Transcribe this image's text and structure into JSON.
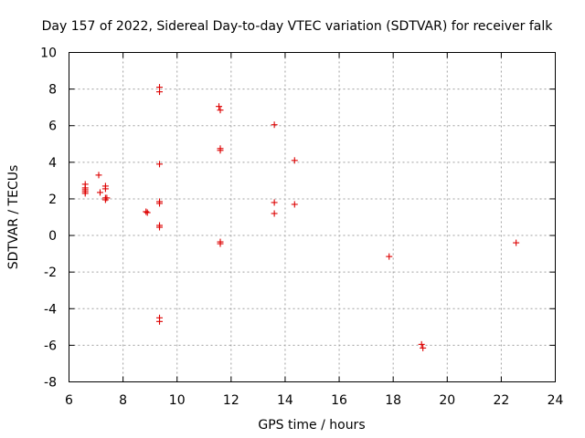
{
  "chart_data": {
    "type": "scatter",
    "title": "Day 157 of 2022, Sidereal Day-to-day VTEC variation (SDTVAR) for receiver falk",
    "xlabel": "GPS time / hours",
    "ylabel": "SDTVAR / TECUs",
    "xlim": [
      6,
      24
    ],
    "ylim": [
      -8,
      10
    ],
    "xticks": [
      6,
      8,
      10,
      12,
      14,
      16,
      18,
      20,
      22,
      24
    ],
    "yticks": [
      -8,
      -6,
      -4,
      -2,
      0,
      2,
      4,
      6,
      8,
      10
    ],
    "grid": true,
    "marker": "+",
    "color": "#dd0000",
    "series": [
      {
        "name": "SDTVAR",
        "x": [
          6.6,
          6.6,
          6.6,
          6.6,
          6.6,
          7.1,
          7.15,
          7.35,
          7.35,
          7.35,
          7.35,
          7.4,
          8.85,
          8.9,
          9.35,
          9.35,
          9.35,
          9.35,
          9.35,
          9.35,
          9.35,
          9.35,
          9.35,
          11.55,
          11.6,
          11.6,
          11.6,
          11.6,
          11.6,
          13.6,
          13.6,
          13.6,
          14.35,
          14.35,
          17.85,
          19.05,
          19.1,
          22.55
        ],
        "y": [
          2.8,
          2.6,
          2.5,
          2.4,
          2.3,
          3.3,
          2.35,
          2.7,
          2.55,
          2.05,
          1.95,
          2.05,
          1.3,
          1.25,
          8.1,
          7.85,
          3.9,
          1.85,
          1.75,
          0.55,
          0.45,
          -4.5,
          -4.7,
          7.05,
          6.85,
          4.75,
          4.65,
          -0.35,
          -0.45,
          6.05,
          1.8,
          1.2,
          4.1,
          1.7,
          -1.15,
          -5.95,
          -6.15,
          -0.4
        ]
      }
    ]
  }
}
